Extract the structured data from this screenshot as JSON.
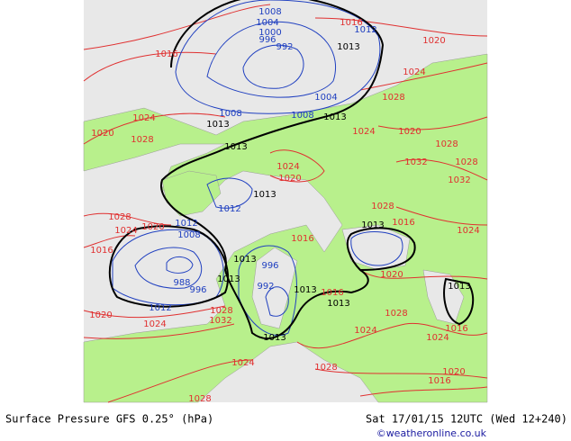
{
  "map": {
    "isobar_labels": [
      "1016",
      "1012",
      "1013",
      "1020",
      "1016",
      "1008",
      "1004",
      "1000",
      "996",
      "992",
      "1024",
      "1028",
      "1004",
      "1008",
      "1008",
      "1013",
      "1013",
      "1024",
      "1020",
      "1028",
      "1013",
      "1024",
      "1020",
      "1028",
      "1024",
      "1032",
      "1028",
      "1020",
      "1032",
      "1013",
      "1012",
      "1028",
      "1020",
      "1012",
      "1013",
      "1016",
      "1024",
      "1028",
      "1008",
      "1016",
      "1013",
      "1016",
      "996",
      "1024",
      "1013",
      "992",
      "996",
      "988",
      "1020",
      "1013",
      "1016",
      "1013",
      "1013",
      "1012",
      "1028",
      "1020",
      "1024",
      "1032",
      "1028",
      "1016",
      "1024",
      "1024",
      "1013",
      "1024",
      "1028",
      "1020",
      "1016",
      "1028"
    ],
    "footer": {
      "title": "Surface Pressure GFS 0.25° (hPa)",
      "time": "Sat 17/01/15 12UTC  (Wed 12+240)",
      "credit": "©weatheronline.co.uk"
    }
  }
}
